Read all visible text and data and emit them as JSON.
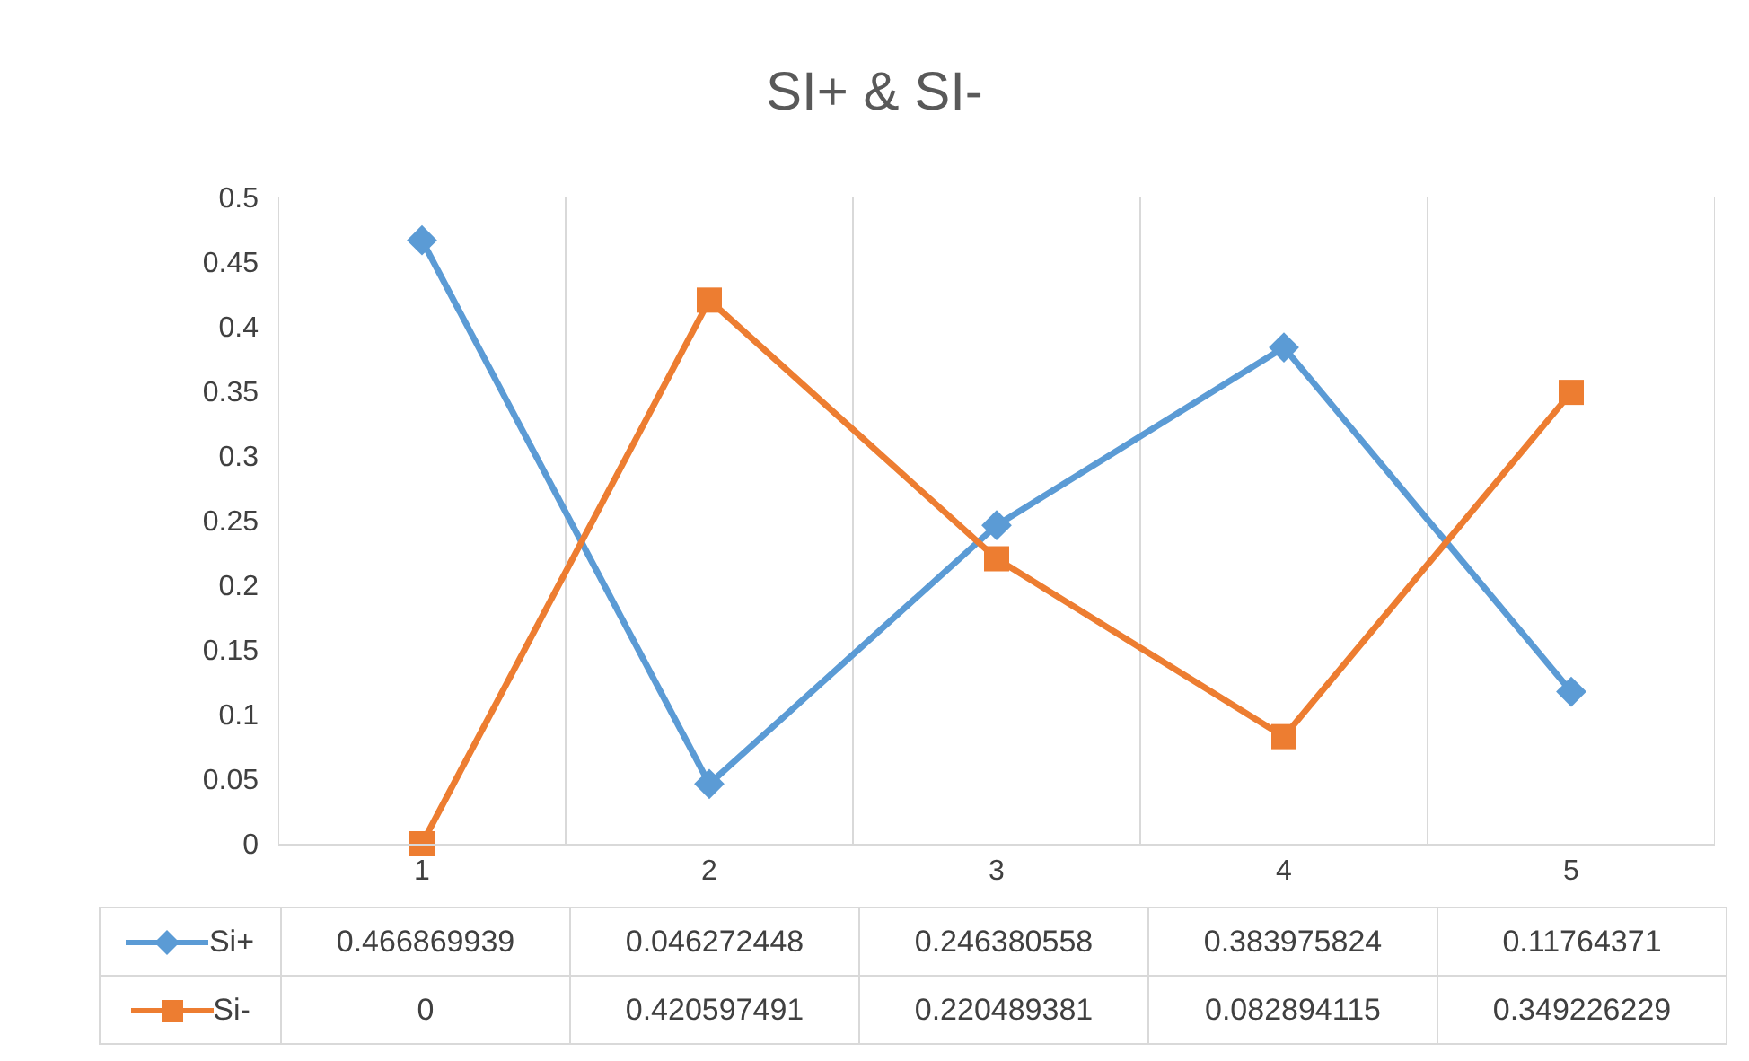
{
  "chart_data": {
    "type": "line",
    "title": "SI+ & SI-",
    "categories": [
      "1",
      "2",
      "3",
      "4",
      "5"
    ],
    "series": [
      {
        "name": "Si+",
        "color": "#5b9bd5",
        "marker": "diamond",
        "values": [
          0.466869939,
          0.046272448,
          0.246380558,
          0.383975824,
          0.11764371
        ]
      },
      {
        "name": "Si-",
        "color": "#ed7d31",
        "marker": "square",
        "values": [
          0,
          0.420597491,
          0.220489381,
          0.082894115,
          0.349226229
        ]
      }
    ],
    "ylim": [
      0,
      0.5
    ],
    "yticks": [
      0,
      0.05,
      0.1,
      0.15,
      0.2,
      0.25,
      0.3,
      0.35,
      0.4,
      0.45,
      0.5
    ],
    "grid": "x",
    "legend": "bottom",
    "data_labels": true,
    "line_style": "solid"
  }
}
